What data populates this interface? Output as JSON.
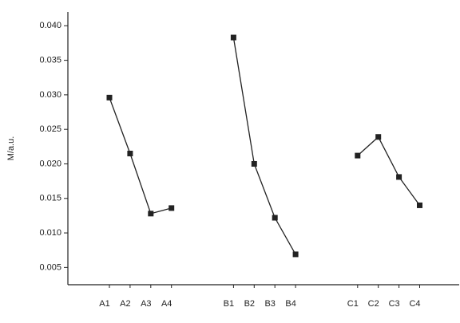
{
  "chart_data": {
    "type": "line",
    "y_label": "M/a.u.",
    "categories": [
      "A1",
      "A2",
      "A3",
      "A4",
      null,
      null,
      "B1",
      "B2",
      "B3",
      "B4",
      null,
      null,
      "C1",
      "C2",
      "C3",
      "C4"
    ],
    "series": [
      {
        "name": null,
        "color": "#222222",
        "values": [
          0.0296,
          0.0215,
          0.0128,
          0.0136,
          null,
          null,
          0.0383,
          0.02,
          0.0122,
          0.0069,
          null,
          null,
          0.0212,
          0.0239,
          0.0181,
          0.014
        ]
      }
    ],
    "ylim": [
      0.0025,
      0.042
    ],
    "yticks": [
      0.005,
      {
        "value": 0.01,
        "label": "0.010"
      },
      0.015,
      {
        "value": 0.02,
        "label": "0.020"
      },
      0.025,
      {
        "value": 0.03,
        "label": "0.030"
      },
      0.035,
      {
        "value": 0.04,
        "label": "0.040"
      }
    ]
  }
}
